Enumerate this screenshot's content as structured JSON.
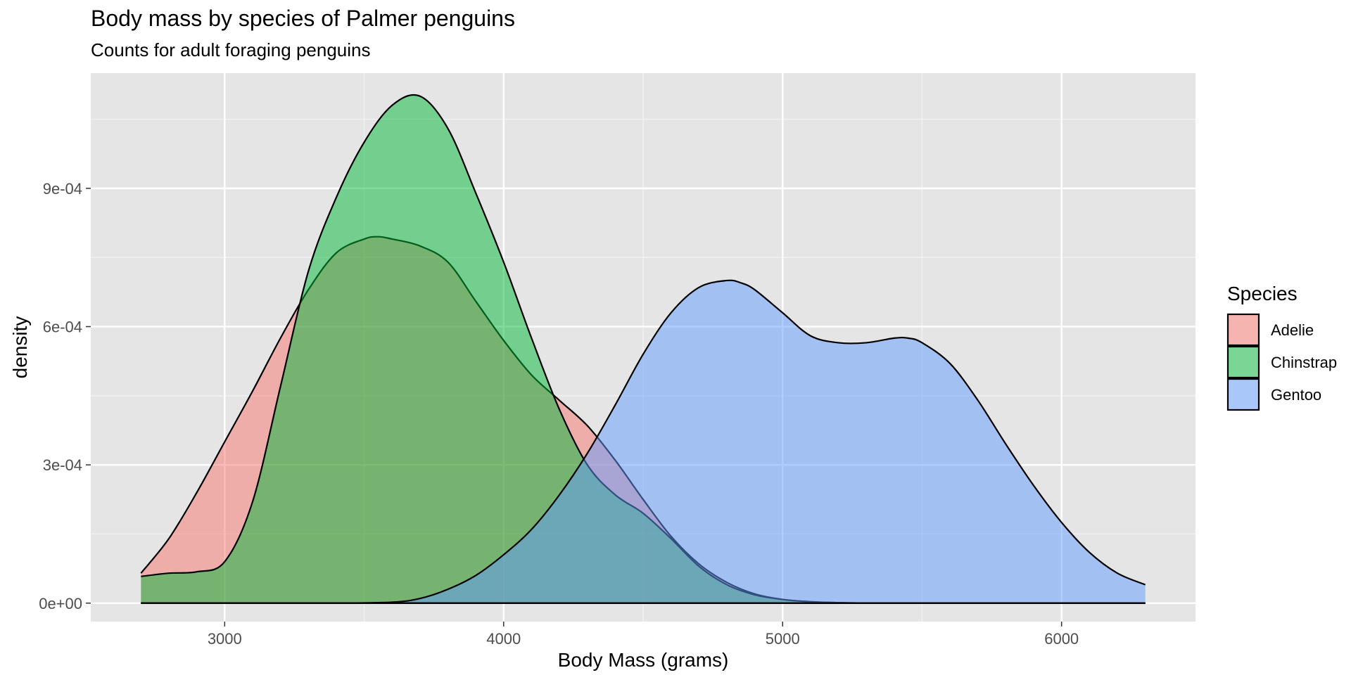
{
  "chart_data": {
    "type": "area",
    "title": "Body mass by species of Palmer penguins",
    "subtitle": "Counts for adult foraging penguins",
    "xlabel": "Body Mass (grams)",
    "ylabel": "density",
    "xlim": [
      2520,
      6480
    ],
    "ylim": [
      -4e-05,
      0.00115
    ],
    "x_ticks": [
      3000,
      4000,
      5000,
      6000
    ],
    "y_ticks": [
      0,
      0.0003,
      0.0006,
      0.0009
    ],
    "y_tick_labels": [
      "0e+00",
      "3e-04",
      "6e-04",
      "9e-04"
    ],
    "grid": true,
    "legend": {
      "title": "Species",
      "position": "right"
    },
    "series": [
      {
        "name": "Adelie",
        "color": "#F8766D",
        "x": [
          2700,
          2800,
          2900,
          3000,
          3100,
          3200,
          3300,
          3400,
          3500,
          3550,
          3600,
          3700,
          3800,
          3900,
          4000,
          4100,
          4200,
          4300,
          4400,
          4500,
          4600,
          4700,
          4800,
          4900,
          5000,
          5100,
          5200,
          5300,
          5400,
          5500,
          5600,
          5700,
          5800,
          5900,
          6000,
          6100,
          6200,
          6300
        ],
        "values": [
          6.5e-05,
          0.00014,
          0.00024,
          0.00035,
          0.00046,
          0.000575,
          0.00068,
          0.00076,
          0.00079,
          0.000795,
          0.00079,
          0.000775,
          0.00074,
          0.000655,
          0.00057,
          0.000495,
          0.00044,
          0.000385,
          0.00031,
          0.000225,
          0.000145,
          8.5e-05,
          4.5e-05,
          2e-05,
          8e-06,
          3e-06,
          1e-06,
          0,
          0,
          0,
          0,
          0,
          0,
          0,
          0,
          0,
          0,
          0
        ]
      },
      {
        "name": "Chinstrap",
        "color": "#00BA38",
        "x": [
          2700,
          2800,
          2900,
          3000,
          3100,
          3200,
          3300,
          3400,
          3500,
          3600,
          3700,
          3800,
          3900,
          4000,
          4100,
          4200,
          4300,
          4400,
          4500,
          4600,
          4700,
          4800,
          4900,
          5000,
          5100,
          5200,
          5300,
          5400,
          5500,
          5600,
          5700,
          5800,
          5900,
          6000,
          6100,
          6200,
          6300
        ],
        "values": [
          5.8e-05,
          6.5e-05,
          6.8e-05,
          9e-05,
          0.00022,
          0.00047,
          0.00072,
          0.00088,
          0.001,
          0.00108,
          0.0011,
          0.00103,
          0.00089,
          0.00074,
          0.000575,
          0.00042,
          0.0003,
          0.000235,
          0.000195,
          0.00014,
          8e-05,
          4e-05,
          1.8e-05,
          8e-06,
          3e-06,
          1e-06,
          0,
          0,
          0,
          0,
          0,
          0,
          0,
          0,
          0,
          0,
          0
        ]
      },
      {
        "name": "Gentoo",
        "color": "#619CFF",
        "x": [
          2700,
          3000,
          3400,
          3600,
          3700,
          3800,
          3900,
          4000,
          4100,
          4200,
          4300,
          4400,
          4500,
          4600,
          4700,
          4800,
          4850,
          4900,
          5000,
          5100,
          5200,
          5300,
          5400,
          5450,
          5500,
          5600,
          5700,
          5800,
          5900,
          6000,
          6100,
          6200,
          6300
        ],
        "values": [
          0,
          0,
          0,
          2e-06,
          1e-05,
          3e-05,
          6e-05,
          0.000105,
          0.00016,
          0.000235,
          0.000325,
          0.00043,
          0.00054,
          0.00063,
          0.000685,
          0.0007,
          0.000695,
          0.00068,
          0.00063,
          0.00058,
          0.000565,
          0.000565,
          0.000575,
          0.000575,
          0.000565,
          0.00052,
          0.00044,
          0.000345,
          0.000255,
          0.000175,
          0.00011,
          6.5e-05,
          4e-05
        ]
      }
    ]
  }
}
